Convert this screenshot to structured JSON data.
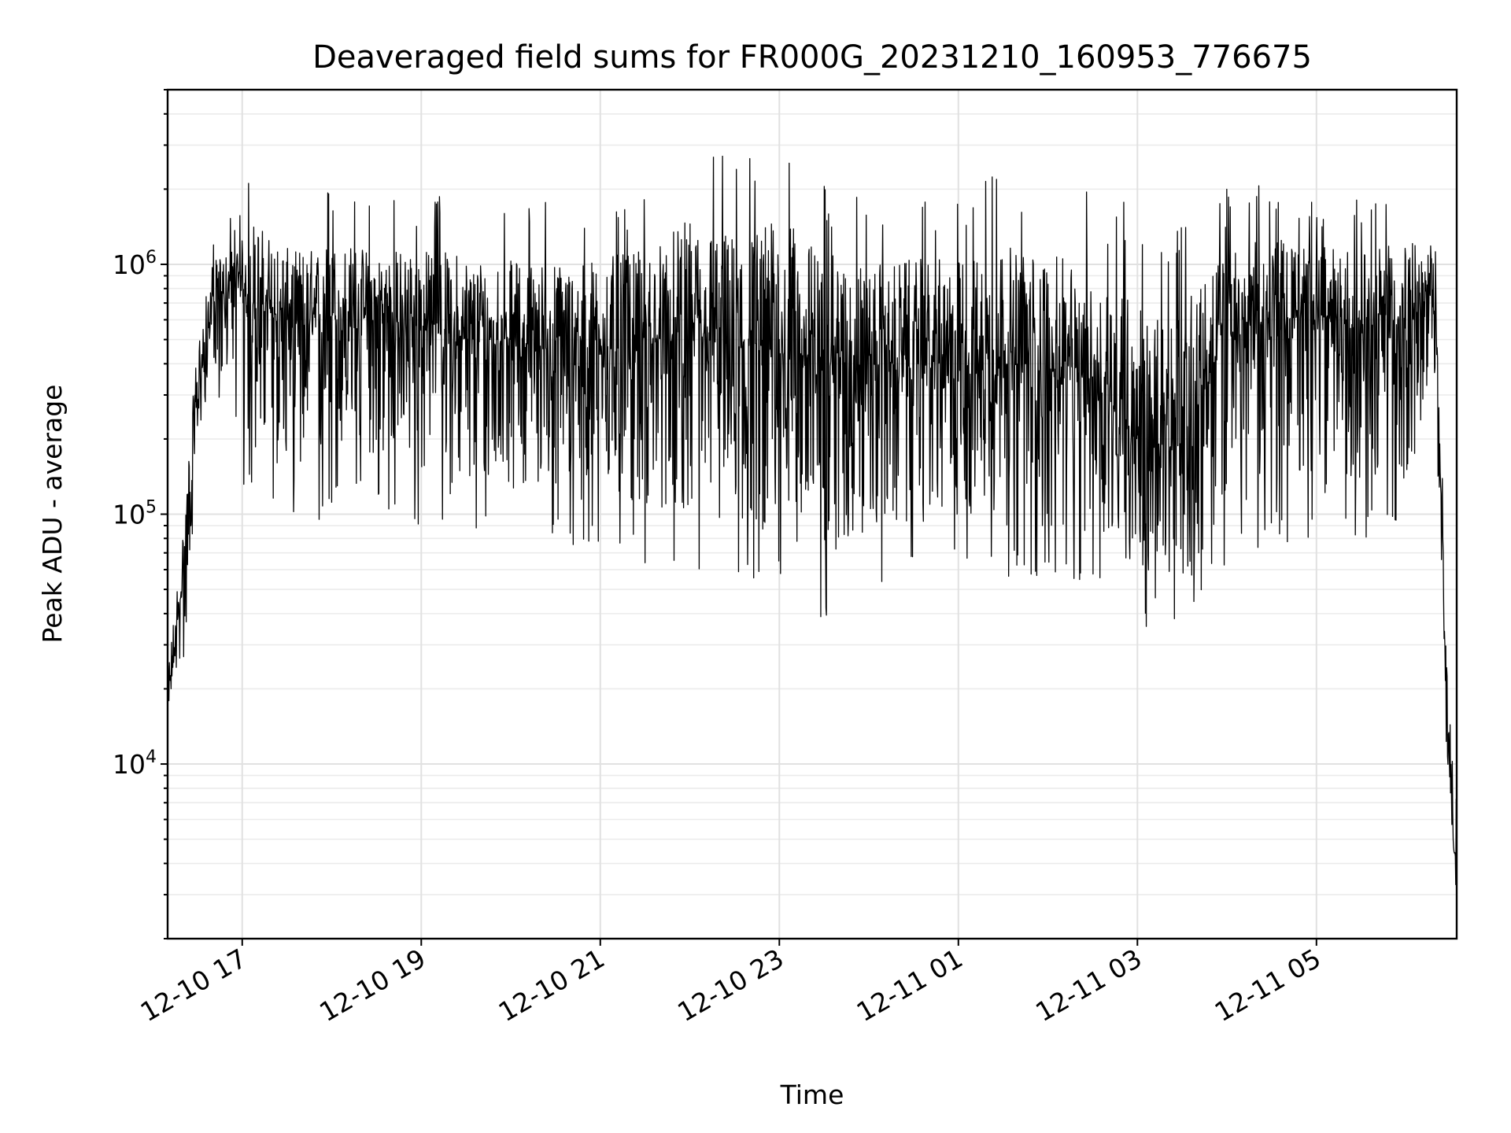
{
  "chart_data": {
    "type": "line",
    "title": "Deaveraged field sums for FR000G_20231210_160953_776675",
    "xlabel": "Time",
    "ylabel": "Peak ADU - average",
    "yscale": "log",
    "grid": true,
    "xlim": [
      "2023-12-10 16:10",
      "2023-12-11 06:34"
    ],
    "ylim": [
      2000,
      5000000
    ],
    "xticks": [
      {
        "value": "2023-12-10 17:00",
        "label": "12-10 17"
      },
      {
        "value": "2023-12-10 19:00",
        "label": "12-10 19"
      },
      {
        "value": "2023-12-10 21:00",
        "label": "12-10 21"
      },
      {
        "value": "2023-12-10 23:00",
        "label": "12-10 23"
      },
      {
        "value": "2023-12-11 01:00",
        "label": "12-11 01"
      },
      {
        "value": "2023-12-11 03:00",
        "label": "12-11 03"
      },
      {
        "value": "2023-12-11 05:00",
        "label": "12-11 05"
      }
    ],
    "yticks": [
      {
        "value": 10000,
        "base": "10",
        "exp": "4"
      },
      {
        "value": 100000,
        "base": "10",
        "exp": "5"
      },
      {
        "value": 1000000,
        "base": "10",
        "exp": "6"
      }
    ],
    "series": [
      {
        "color": "#000000",
        "points": [
          {
            "t": "2023-12-10 16:10",
            "v": 17000,
            "lo": 17000,
            "hi": 30000
          },
          {
            "t": "2023-12-10 16:20",
            "v": 55000,
            "lo": 22000,
            "hi": 110000
          },
          {
            "t": "2023-12-10 16:30",
            "v": 300000,
            "lo": 150000,
            "hi": 700000
          },
          {
            "t": "2023-12-10 16:40",
            "v": 700000,
            "lo": 350000,
            "hi": 1300000
          },
          {
            "t": "2023-12-10 17:00",
            "v": 800000,
            "lo": 130000,
            "hi": 1700000
          },
          {
            "t": "2023-12-10 17:06",
            "v": 700000,
            "lo": 110000,
            "hi": 2600000
          },
          {
            "t": "2023-12-10 17:30",
            "v": 600000,
            "lo": 90000,
            "hi": 1800000
          },
          {
            "t": "2023-12-10 17:45",
            "v": 550000,
            "lo": 70000,
            "hi": 1900000
          },
          {
            "t": "2023-12-10 18:00",
            "v": 600000,
            "lo": 100000,
            "hi": 2000000
          },
          {
            "t": "2023-12-10 18:30",
            "v": 600000,
            "lo": 110000,
            "hi": 1800000
          },
          {
            "t": "2023-12-10 19:00",
            "v": 550000,
            "lo": 80000,
            "hi": 1900000
          },
          {
            "t": "2023-12-10 19:30",
            "v": 500000,
            "lo": 70000,
            "hi": 1900000
          },
          {
            "t": "2023-12-10 20:00",
            "v": 500000,
            "lo": 80000,
            "hi": 1700000
          },
          {
            "t": "2023-12-10 20:30",
            "v": 450000,
            "lo": 75000,
            "hi": 1800000
          },
          {
            "t": "2023-12-10 21:00",
            "v": 450000,
            "lo": 70000,
            "hi": 1900000
          },
          {
            "t": "2023-12-10 21:30",
            "v": 480000,
            "lo": 60000,
            "hi": 2000000
          },
          {
            "t": "2023-12-10 22:00",
            "v": 500000,
            "lo": 60000,
            "hi": 3200000
          },
          {
            "t": "2023-12-10 22:30",
            "v": 450000,
            "lo": 50000,
            "hi": 2700000
          },
          {
            "t": "2023-12-10 23:00",
            "v": 450000,
            "lo": 48000,
            "hi": 3600000
          },
          {
            "t": "2023-12-10 23:30",
            "v": 400000,
            "lo": 37000,
            "hi": 2200000
          },
          {
            "t": "2023-12-11 00:00",
            "v": 400000,
            "lo": 46000,
            "hi": 1800000
          },
          {
            "t": "2023-12-11 00:30",
            "v": 400000,
            "lo": 55000,
            "hi": 2000000
          },
          {
            "t": "2023-12-11 01:00",
            "v": 400000,
            "lo": 60000,
            "hi": 2000000
          },
          {
            "t": "2023-12-11 01:30",
            "v": 400000,
            "lo": 55000,
            "hi": 2500000
          },
          {
            "t": "2023-12-11 02:00",
            "v": 380000,
            "lo": 50000,
            "hi": 2200000
          },
          {
            "t": "2023-12-11 02:30",
            "v": 350000,
            "lo": 50000,
            "hi": 2000000
          },
          {
            "t": "2023-12-11 03:00",
            "v": 200000,
            "lo": 40000,
            "hi": 1800000
          },
          {
            "t": "2023-12-11 03:10",
            "v": 150000,
            "lo": 26000,
            "hi": 1500000
          },
          {
            "t": "2023-12-11 03:30",
            "v": 200000,
            "lo": 30000,
            "hi": 1500000
          },
          {
            "t": "2023-12-11 04:00",
            "v": 500000,
            "lo": 60000,
            "hi": 2000000
          },
          {
            "t": "2023-12-11 04:30",
            "v": 600000,
            "lo": 80000,
            "hi": 2100000
          },
          {
            "t": "2023-12-11 05:00",
            "v": 600000,
            "lo": 70000,
            "hi": 1900000
          },
          {
            "t": "2023-12-11 05:30",
            "v": 550000,
            "lo": 80000,
            "hi": 1800000
          },
          {
            "t": "2023-12-11 06:00",
            "v": 600000,
            "lo": 80000,
            "hi": 2000000
          },
          {
            "t": "2023-12-11 06:20",
            "v": 700000,
            "lo": 200000,
            "hi": 1700000
          },
          {
            "t": "2023-12-11 06:26",
            "v": 30000,
            "lo": 15000,
            "hi": 60000
          },
          {
            "t": "2023-12-11 06:34",
            "v": 2800,
            "lo": 2800,
            "hi": 15000
          }
        ]
      }
    ]
  }
}
